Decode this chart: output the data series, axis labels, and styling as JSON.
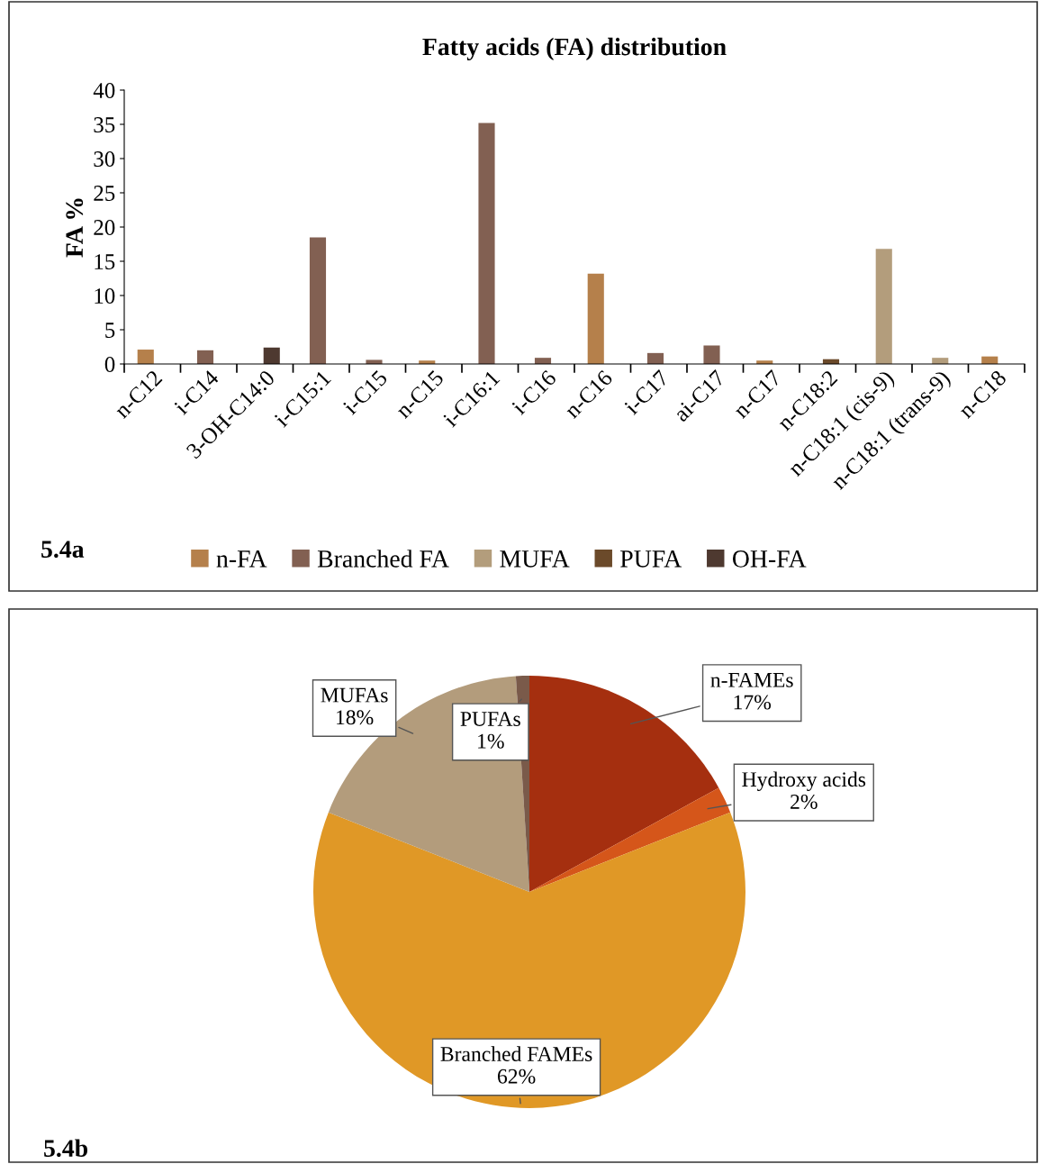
{
  "chart_data": [
    {
      "type": "bar",
      "title": "Fatty acids (FA) distribution",
      "ylabel": "FA %",
      "categories": [
        "n-C12",
        "i-C14",
        "3-OH-C14:0",
        "i-C15:1",
        "i-C15",
        "n-C15",
        "i-C16:1",
        "i-C16",
        "n-C16",
        "i-C17",
        "ai-C17",
        "n-C17",
        "n-C18:2",
        "n-C18:1 (cis-9)",
        "n-C18:1 (trans-9)",
        "n-C18"
      ],
      "series": [
        {
          "name": "n-FA",
          "color": "#b5804b",
          "values": [
            2.1,
            null,
            null,
            null,
            null,
            0.5,
            null,
            null,
            13.2,
            null,
            null,
            0.5,
            null,
            null,
            null,
            1.1
          ]
        },
        {
          "name": "Branched FA",
          "color": "#826052",
          "values": [
            null,
            2.0,
            null,
            18.5,
            0.6,
            null,
            35.2,
            0.9,
            null,
            1.6,
            2.7,
            null,
            null,
            null,
            null,
            null
          ]
        },
        {
          "name": "MUFA",
          "color": "#b39d7c",
          "values": [
            null,
            null,
            null,
            null,
            null,
            null,
            null,
            null,
            null,
            null,
            null,
            null,
            null,
            16.8,
            0.9,
            null
          ]
        },
        {
          "name": "PUFA",
          "color": "#6b4a2a",
          "values": [
            null,
            null,
            null,
            null,
            null,
            null,
            null,
            null,
            null,
            null,
            null,
            null,
            0.7,
            null,
            null,
            null
          ]
        },
        {
          "name": "OH-FA",
          "color": "#4e3930",
          "values": [
            null,
            null,
            2.4,
            null,
            null,
            null,
            null,
            null,
            null,
            null,
            null,
            null,
            null,
            null,
            null,
            null
          ]
        }
      ],
      "ylim": [
        0,
        40
      ],
      "yticks": [
        0,
        5,
        10,
        15,
        20,
        25,
        30,
        35,
        40
      ],
      "grid": false,
      "legend": "bottom",
      "annotations": [
        "5.4a"
      ]
    },
    {
      "type": "pie",
      "categories": [
        "n-FAMEs",
        "Hydroxy acids",
        "Branched FAMEs",
        "MUFAs",
        "PUFAs"
      ],
      "values": [
        17,
        2,
        62,
        18,
        1
      ],
      "value_labels": [
        "17%",
        "2%",
        "62%",
        "18%",
        "1%"
      ],
      "colors": [
        "#a52f0f",
        "#d5561a",
        "#e09826",
        "#b39c7c",
        "#7a5a4a"
      ],
      "annotations": [
        "5.4b"
      ]
    }
  ]
}
